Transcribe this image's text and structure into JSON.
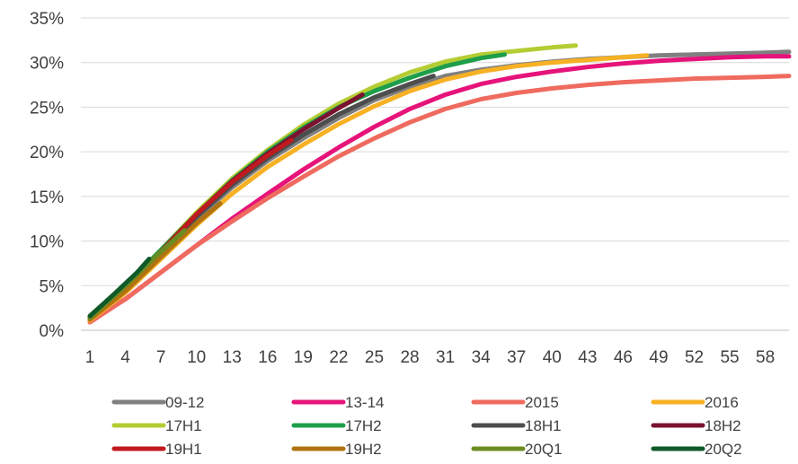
{
  "chart_data": {
    "type": "line",
    "title": "",
    "xlabel": "",
    "ylabel": "",
    "x_range": [
      1,
      60
    ],
    "ylim": [
      0,
      0.35
    ],
    "y_ticks": [
      "0%",
      "5%",
      "10%",
      "15%",
      "20%",
      "25%",
      "30%",
      "35%"
    ],
    "x_ticks": [
      "1",
      "4",
      "7",
      "10",
      "13",
      "16",
      "19",
      "22",
      "25",
      "28",
      "31",
      "34",
      "37",
      "40",
      "43",
      "46",
      "49",
      "52",
      "55",
      "58"
    ],
    "grid": "horizontal",
    "legend_position": "bottom",
    "series": [
      {
        "name": "09-12",
        "color": "#808080",
        "points": [
          [
            1,
            0.012
          ],
          [
            4,
            0.045
          ],
          [
            7,
            0.085
          ],
          [
            10,
            0.125
          ],
          [
            13,
            0.16
          ],
          [
            16,
            0.19
          ],
          [
            19,
            0.215
          ],
          [
            22,
            0.238
          ],
          [
            25,
            0.258
          ],
          [
            28,
            0.273
          ],
          [
            31,
            0.285
          ],
          [
            34,
            0.292
          ],
          [
            37,
            0.297
          ],
          [
            40,
            0.301
          ],
          [
            43,
            0.304
          ],
          [
            46,
            0.306
          ],
          [
            49,
            0.308
          ],
          [
            52,
            0.309
          ],
          [
            55,
            0.31
          ],
          [
            58,
            0.311
          ],
          [
            60,
            0.312
          ]
        ]
      },
      {
        "name": "13-14",
        "color": "#e6137a",
        "points": [
          [
            1,
            0.01
          ],
          [
            4,
            0.035
          ],
          [
            7,
            0.065
          ],
          [
            10,
            0.095
          ],
          [
            13,
            0.125
          ],
          [
            16,
            0.153
          ],
          [
            19,
            0.18
          ],
          [
            22,
            0.205
          ],
          [
            25,
            0.228
          ],
          [
            28,
            0.248
          ],
          [
            31,
            0.264
          ],
          [
            34,
            0.276
          ],
          [
            37,
            0.284
          ],
          [
            40,
            0.29
          ],
          [
            43,
            0.295
          ],
          [
            46,
            0.299
          ],
          [
            49,
            0.302
          ],
          [
            52,
            0.304
          ],
          [
            55,
            0.306
          ],
          [
            58,
            0.307
          ],
          [
            60,
            0.307
          ]
        ]
      },
      {
        "name": "2015",
        "color": "#ef6b5f",
        "points": [
          [
            1,
            0.009
          ],
          [
            4,
            0.035
          ],
          [
            7,
            0.065
          ],
          [
            10,
            0.095
          ],
          [
            13,
            0.122
          ],
          [
            16,
            0.148
          ],
          [
            19,
            0.172
          ],
          [
            22,
            0.195
          ],
          [
            25,
            0.215
          ],
          [
            28,
            0.233
          ],
          [
            31,
            0.248
          ],
          [
            34,
            0.259
          ],
          [
            37,
            0.266
          ],
          [
            40,
            0.271
          ],
          [
            43,
            0.275
          ],
          [
            46,
            0.278
          ],
          [
            49,
            0.28
          ],
          [
            52,
            0.282
          ],
          [
            55,
            0.283
          ],
          [
            58,
            0.284
          ],
          [
            60,
            0.285
          ]
        ]
      },
      {
        "name": "2016",
        "color": "#f7b124",
        "points": [
          [
            1,
            0.011
          ],
          [
            4,
            0.042
          ],
          [
            7,
            0.08
          ],
          [
            10,
            0.118
          ],
          [
            13,
            0.153
          ],
          [
            16,
            0.183
          ],
          [
            19,
            0.208
          ],
          [
            22,
            0.231
          ],
          [
            25,
            0.251
          ],
          [
            28,
            0.268
          ],
          [
            31,
            0.281
          ],
          [
            34,
            0.29
          ],
          [
            37,
            0.296
          ],
          [
            40,
            0.3
          ],
          [
            43,
            0.303
          ],
          [
            46,
            0.306
          ],
          [
            48,
            0.308
          ]
        ]
      },
      {
        "name": "17H1",
        "color": "#b5cc33",
        "points": [
          [
            1,
            0.015
          ],
          [
            4,
            0.05
          ],
          [
            7,
            0.09
          ],
          [
            10,
            0.132
          ],
          [
            13,
            0.17
          ],
          [
            16,
            0.202
          ],
          [
            19,
            0.23
          ],
          [
            22,
            0.254
          ],
          [
            25,
            0.273
          ],
          [
            28,
            0.289
          ],
          [
            31,
            0.301
          ],
          [
            34,
            0.309
          ],
          [
            37,
            0.313
          ],
          [
            40,
            0.317
          ],
          [
            42,
            0.319
          ]
        ]
      },
      {
        "name": "17H2",
        "color": "#1e9e4a",
        "points": [
          [
            1,
            0.015
          ],
          [
            4,
            0.05
          ],
          [
            7,
            0.09
          ],
          [
            10,
            0.13
          ],
          [
            13,
            0.168
          ],
          [
            16,
            0.2
          ],
          [
            19,
            0.227
          ],
          [
            22,
            0.25
          ],
          [
            25,
            0.268
          ],
          [
            28,
            0.283
          ],
          [
            31,
            0.296
          ],
          [
            34,
            0.305
          ],
          [
            36,
            0.309
          ]
        ]
      },
      {
        "name": "18H1",
        "color": "#4d4d4d",
        "points": [
          [
            1,
            0.014
          ],
          [
            4,
            0.048
          ],
          [
            7,
            0.087
          ],
          [
            10,
            0.127
          ],
          [
            13,
            0.163
          ],
          [
            16,
            0.193
          ],
          [
            19,
            0.219
          ],
          [
            22,
            0.242
          ],
          [
            25,
            0.261
          ],
          [
            28,
            0.276
          ],
          [
            30,
            0.285
          ]
        ]
      },
      {
        "name": "18H2",
        "color": "#7a1230",
        "points": [
          [
            1,
            0.014
          ],
          [
            4,
            0.048
          ],
          [
            7,
            0.088
          ],
          [
            10,
            0.13
          ],
          [
            13,
            0.167
          ],
          [
            16,
            0.198
          ],
          [
            19,
            0.225
          ],
          [
            22,
            0.249
          ],
          [
            24,
            0.264
          ]
        ]
      },
      {
        "name": "19H1",
        "color": "#c0191f",
        "points": [
          [
            1,
            0.014
          ],
          [
            4,
            0.048
          ],
          [
            7,
            0.088
          ],
          [
            10,
            0.13
          ],
          [
            13,
            0.166
          ],
          [
            16,
            0.196
          ],
          [
            18,
            0.213
          ]
        ]
      },
      {
        "name": "19H2",
        "color": "#b07310",
        "points": [
          [
            1,
            0.012
          ],
          [
            4,
            0.044
          ],
          [
            7,
            0.082
          ],
          [
            10,
            0.12
          ],
          [
            12,
            0.142
          ]
        ]
      },
      {
        "name": "20Q1",
        "color": "#6b8c22",
        "points": [
          [
            1,
            0.014
          ],
          [
            4,
            0.05
          ],
          [
            7,
            0.088
          ],
          [
            9,
            0.112
          ]
        ]
      },
      {
        "name": "20Q2",
        "color": "#0f5a28",
        "points": [
          [
            1,
            0.016
          ],
          [
            3,
            0.04
          ],
          [
            5,
            0.065
          ],
          [
            6,
            0.08
          ]
        ]
      }
    ]
  }
}
